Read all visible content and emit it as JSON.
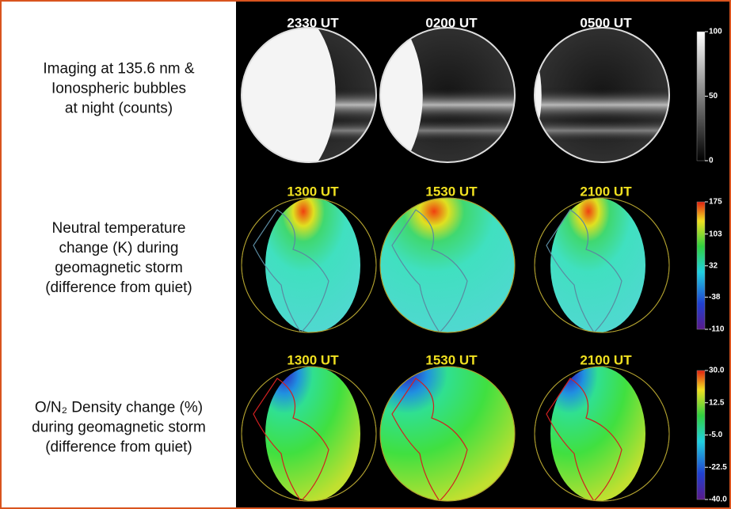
{
  "rows": [
    {
      "label_lines": [
        "Imaging at 135.6 nm &",
        "Ionospheric bubbles",
        "at night (counts)"
      ],
      "times": [
        "2330 UT",
        "0200 UT",
        "0500 UT"
      ],
      "colorbar": {
        "ticks": [
          100,
          50,
          0
        ]
      }
    },
    {
      "label_lines": [
        "Neutral temperature",
        "change (K) during",
        "geomagnetic storm",
        "(difference from quiet)"
      ],
      "times": [
        "1300 UT",
        "1530 UT",
        "2100 UT"
      ],
      "colorbar": {
        "ticks": [
          175,
          103,
          32,
          -38,
          -110
        ]
      }
    },
    {
      "label_lines": [
        "O/N₂ Density change (%)",
        "during geomagnetic storm",
        "(difference from quiet)"
      ],
      "times": [
        "1300 UT",
        "1530 UT",
        "2100 UT"
      ],
      "colorbar": {
        "ticks": [
          {
            "value": 30,
            "label": "30.0"
          },
          {
            "value": 12.5,
            "label": "12.5"
          },
          {
            "value": -5,
            "label": "-5.0"
          },
          {
            "value": -22.5,
            "label": "-22.5"
          },
          {
            "value": -40,
            "label": "-40.0"
          }
        ]
      }
    }
  ]
}
